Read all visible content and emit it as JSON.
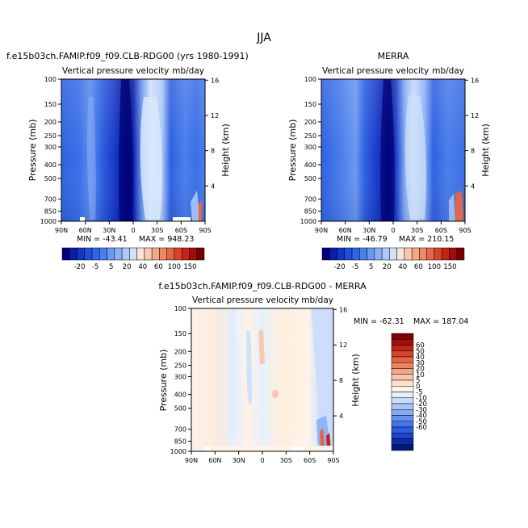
{
  "figure": {
    "title": "JJA"
  },
  "colors": {
    "full_scale": [
      "#00007a",
      "#0a1ea8",
      "#1436c8",
      "#1e50dc",
      "#2e66e6",
      "#4a80ee",
      "#6a98f2",
      "#8cb0f6",
      "#aecaf8",
      "#d0e2fa",
      "#fbe3d6",
      "#f8c8b0",
      "#f4a888",
      "#ee8866",
      "#e46646",
      "#d8442a",
      "#c42418",
      "#a60a0a",
      "#7a0000"
    ],
    "diff_scale": [
      "#001a7a",
      "#0a2ca8",
      "#1a44cc",
      "#2c5ce0",
      "#4676ea",
      "#6690f0",
      "#86aaf4",
      "#a8c4f8",
      "#cadcfa",
      "#e6f0fc",
      "#fff2e8",
      "#fde0ce",
      "#f9c4aa",
      "#f4a686",
      "#ec8662",
      "#e26442",
      "#d44428",
      "#c02616",
      "#a2100a",
      "#7e0000"
    ]
  },
  "chart_data": [
    {
      "type": "heatmap",
      "panel": "model",
      "title": "f.e15b03ch.FAMIP.f09_f09.CLB-RDG00 (yrs 1980-1991)",
      "subtitle_left": "Vertical pressure velocity",
      "subtitle_right": "mb/day",
      "ylabel": "Pressure (mb)",
      "ylabel_right": "Height (km)",
      "x_ticks": [
        "90N",
        "60N",
        "30N",
        "0",
        "30S",
        "60S",
        "90S"
      ],
      "y_ticks": [
        "100",
        "150",
        "200",
        "250",
        "300",
        "400",
        "500",
        "700",
        "850",
        "1000"
      ],
      "y_right_ticks": [
        "16",
        "12",
        "8",
        "4"
      ],
      "min_text": "MIN = -43.41",
      "max_text": "MAX = 948.23"
    },
    {
      "type": "heatmap",
      "panel": "obs",
      "title": "MERRA",
      "subtitle_left": "Vertical pressure velocity",
      "subtitle_right": "mb/day",
      "ylabel": "Pressure (mb)",
      "ylabel_right": "Height (km)",
      "x_ticks": [
        "90N",
        "60N",
        "30N",
        "0",
        "30S",
        "60S",
        "90S"
      ],
      "y_ticks": [
        "100",
        "150",
        "200",
        "250",
        "300",
        "400",
        "500",
        "700",
        "850",
        "1000"
      ],
      "y_right_ticks": [
        "16",
        "12",
        "8",
        "4"
      ],
      "min_text": "MIN = -46.79",
      "max_text": "MAX = 210.15"
    },
    {
      "type": "heatmap",
      "panel": "difference",
      "title": "f.e15b03ch.FAMIP.f09_f09.CLB-RDG00 - MERRA",
      "subtitle_left": "Vertical pressure velocity",
      "subtitle_right": "mb/day",
      "ylabel": "Pressure (mb)",
      "ylabel_right": "Height (km)",
      "x_ticks": [
        "90N",
        "60N",
        "30N",
        "0",
        "30S",
        "60S",
        "90S"
      ],
      "y_ticks": [
        "100",
        "150",
        "200",
        "250",
        "300",
        "400",
        "500",
        "700",
        "850",
        "1000"
      ],
      "y_right_ticks": [
        "16",
        "12",
        "8",
        "4"
      ],
      "min_text": "MIN = -62.31",
      "max_text": "MAX = 187.04"
    }
  ],
  "colorbar_full": {
    "labels": [
      "-20",
      "-5",
      "5",
      "20",
      "40",
      "60",
      "100",
      "150"
    ]
  },
  "colorbar_diff": {
    "labels": [
      "60",
      "50",
      "40",
      "30",
      "20",
      "10",
      "5",
      "0",
      "-5",
      "-10",
      "-20",
      "-30",
      "-40",
      "-50",
      "-60"
    ]
  }
}
